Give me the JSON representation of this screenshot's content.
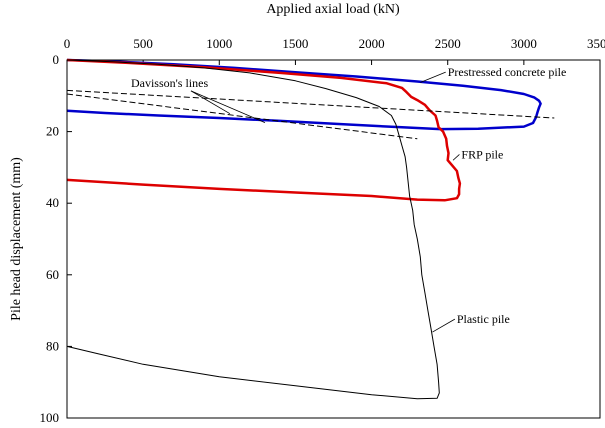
{
  "chart_data": {
    "type": "line",
    "xlabel": "Applied axial load (kN)",
    "ylabel": "Pile head displacement (mm)",
    "xlim": [
      0,
      3500
    ],
    "ylim": [
      0,
      100
    ],
    "x_ticks": [
      0,
      500,
      1000,
      1500,
      2000,
      2500,
      3000,
      3500
    ],
    "y_ticks": [
      0,
      20,
      40,
      60,
      80,
      100
    ],
    "x_axis_position": "top",
    "y_axis_inverted": true,
    "grid": false,
    "legend": "none",
    "series": [
      {
        "name": "Prestressed concrete pile",
        "color": "#0000cc",
        "points": [
          [
            0,
            0
          ],
          [
            300,
            0.4
          ],
          [
            700,
            1.2
          ],
          [
            1100,
            2.2
          ],
          [
            1500,
            3.4
          ],
          [
            1900,
            4.6
          ],
          [
            2300,
            6.0
          ],
          [
            2600,
            7.2
          ],
          [
            2850,
            8.4
          ],
          [
            3000,
            9.5
          ],
          [
            3070,
            10.5
          ],
          [
            3100,
            11.4
          ],
          [
            3110,
            12.2
          ],
          [
            3100,
            13.2
          ],
          [
            3090,
            14.5
          ],
          [
            3080,
            16.0
          ],
          [
            3060,
            17.6
          ],
          [
            3000,
            18.6
          ],
          [
            2700,
            19.2
          ],
          [
            2450,
            19.3
          ],
          [
            2200,
            18.8
          ],
          [
            1800,
            17.9
          ],
          [
            1400,
            17.0
          ],
          [
            1000,
            16.2
          ],
          [
            600,
            15.5
          ],
          [
            250,
            14.8
          ],
          [
            0,
            14.2
          ]
        ]
      },
      {
        "name": "FRP pile",
        "color": "#dd0000",
        "points": [
          [
            0,
            0
          ],
          [
            400,
            0.8
          ],
          [
            900,
            2.0
          ],
          [
            1400,
            3.6
          ],
          [
            1800,
            5.0
          ],
          [
            2100,
            6.5
          ],
          [
            2200,
            7.8
          ],
          [
            2230,
            9.0
          ],
          [
            2260,
            10.3
          ],
          [
            2300,
            11.2
          ],
          [
            2350,
            12.5
          ],
          [
            2380,
            14.0
          ],
          [
            2420,
            15.5
          ],
          [
            2430,
            17.0
          ],
          [
            2440,
            18.8
          ],
          [
            2470,
            20.0
          ],
          [
            2490,
            22.0
          ],
          [
            2495,
            24.0
          ],
          [
            2505,
            26.0
          ],
          [
            2500,
            28.0
          ],
          [
            2530,
            29.5
          ],
          [
            2560,
            31.0
          ],
          [
            2570,
            33.0
          ],
          [
            2580,
            34.5
          ],
          [
            2575,
            36.0
          ],
          [
            2575,
            37.5
          ],
          [
            2560,
            38.6
          ],
          [
            2480,
            39.2
          ],
          [
            2300,
            39.0
          ],
          [
            2000,
            38.0
          ],
          [
            1500,
            37.0
          ],
          [
            1000,
            36.0
          ],
          [
            500,
            34.8
          ],
          [
            0,
            33.5
          ]
        ]
      },
      {
        "name": "Plastic pile",
        "color": "#000000",
        "points": [
          [
            0,
            0
          ],
          [
            300,
            0.5
          ],
          [
            600,
            1.2
          ],
          [
            900,
            2.2
          ],
          [
            1200,
            3.6
          ],
          [
            1500,
            5.8
          ],
          [
            1700,
            8.0
          ],
          [
            1900,
            10.5
          ],
          [
            2050,
            13.0
          ],
          [
            2130,
            15.5
          ],
          [
            2160,
            18.0
          ],
          [
            2180,
            21.0
          ],
          [
            2200,
            24.0
          ],
          [
            2220,
            27.0
          ],
          [
            2230,
            30.0
          ],
          [
            2240,
            34.0
          ],
          [
            2250,
            38.0
          ],
          [
            2270,
            42.0
          ],
          [
            2280,
            46.0
          ],
          [
            2300,
            50.0
          ],
          [
            2320,
            55.0
          ],
          [
            2330,
            60.0
          ],
          [
            2350,
            65.0
          ],
          [
            2370,
            70.0
          ],
          [
            2390,
            75.0
          ],
          [
            2410,
            80.0
          ],
          [
            2430,
            85.0
          ],
          [
            2440,
            90.0
          ],
          [
            2445,
            93.0
          ],
          [
            2430,
            94.5
          ],
          [
            2300,
            94.6
          ],
          [
            2000,
            93.5
          ],
          [
            1500,
            91.0
          ],
          [
            1000,
            88.5
          ],
          [
            500,
            85.0
          ],
          [
            200,
            82.0
          ],
          [
            0,
            80.0
          ]
        ]
      },
      {
        "name": "",
        "color": "#000000",
        "dashed": true,
        "points": [
          [
            0,
            8.5
          ],
          [
            3200,
            16.2
          ]
        ]
      },
      {
        "name": "",
        "color": "#000000",
        "dashed": true,
        "points": [
          [
            0,
            9.5
          ],
          [
            2300,
            22.0
          ]
        ]
      }
    ],
    "annotations": [
      {
        "text": "Prestressed concrete pile",
        "x": 2500,
        "y": 4.5,
        "arrow_to": [
          2320,
          6.3
        ]
      },
      {
        "text": "FRP pile",
        "x": 2590,
        "y": 27.5,
        "arrow_to": [
          2535,
          28.0
        ]
      },
      {
        "text": "Plastic pile",
        "x": 2560,
        "y": 73.5,
        "arrow_to": [
          2400,
          76.0
        ]
      },
      {
        "text": "Davisson's lines",
        "x": 420,
        "y": 7.5,
        "arrow_to": [
          1070,
          15.0
        ],
        "arrow_to_2": [
          1300,
          17.5
        ]
      }
    ]
  }
}
